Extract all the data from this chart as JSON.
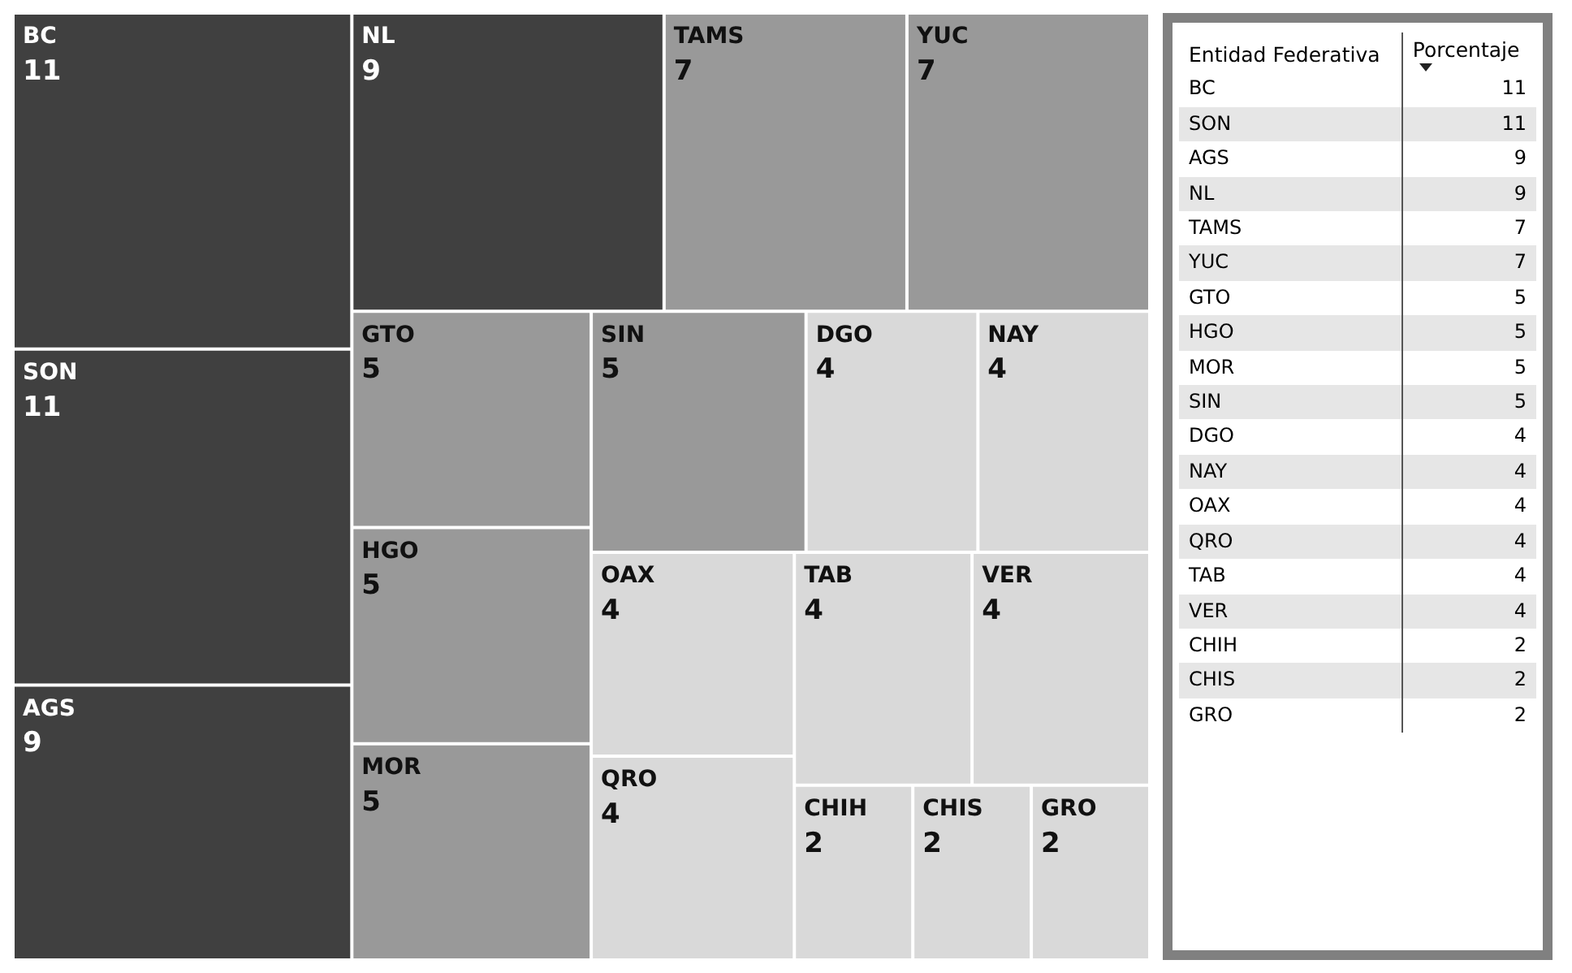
{
  "chart_data": [
    {
      "type": "other",
      "categories": [
        "BC",
        "SON",
        "AGS",
        "NL",
        "TAMS",
        "YUC",
        "GTO",
        "HGO",
        "MOR",
        "SIN",
        "DGO",
        "NAY",
        "OAX",
        "QRO",
        "TAB",
        "VER",
        "CHIH",
        "CHIS",
        "GRO"
      ],
      "values": [
        11,
        11,
        9,
        9,
        7,
        7,
        5,
        5,
        5,
        5,
        4,
        4,
        4,
        4,
        4,
        4,
        2,
        2,
        2
      ],
      "colors": [
        "#404040",
        "#404040",
        "#404040",
        "#404040",
        "#999999",
        "#999999",
        "#999999",
        "#999999",
        "#999999",
        "#999999",
        "#d9d9d9",
        "#d9d9d9",
        "#d9d9d9",
        "#d9d9d9",
        "#d9d9d9",
        "#d9d9d9",
        "#d9d9d9",
        "#d9d9d9",
        "#d9d9d9"
      ],
      "data_labels": true
    },
    {
      "type": "other",
      "categories": [
        "BC",
        "SON",
        "AGS",
        "NL",
        "TAMS",
        "YUC",
        "GTO",
        "HGO",
        "MOR",
        "SIN",
        "DGO",
        "NAY",
        "OAX",
        "QRO",
        "TAB",
        "VER",
        "CHIH",
        "CHIS",
        "GRO"
      ],
      "values": [
        11,
        11,
        9,
        9,
        7,
        7,
        5,
        5,
        5,
        5,
        4,
        4,
        4,
        4,
        4,
        4,
        2,
        2,
        2
      ],
      "data_labels": true,
      "annotations": [
        "Entidad Federativa",
        "Porcentaje"
      ]
    }
  ]
}
